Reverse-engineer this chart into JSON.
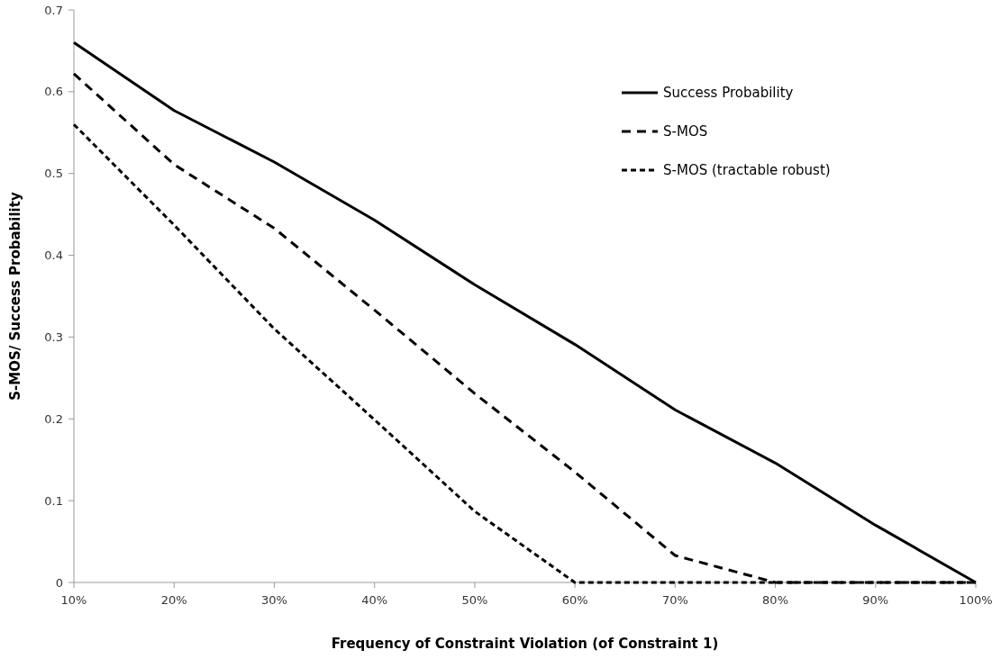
{
  "chart_data": {
    "type": "line",
    "xlabel": "Frequency of Constraint Violation (of Constraint 1)",
    "ylabel": "S-MOS/ Success Probability",
    "categories": [
      "10%",
      "20%",
      "30%",
      "40%",
      "50%",
      "60%",
      "70%",
      "80%",
      "90%",
      "100%"
    ],
    "ylim": [
      0,
      0.7
    ],
    "yticks": [
      0,
      0.1,
      0.2,
      0.3,
      0.4,
      0.5,
      0.6,
      0.7
    ],
    "legend": "top right",
    "grid": false,
    "series": [
      {
        "name": "Success Probability",
        "color": "#000000",
        "line_style": "solid",
        "values": [
          0.66,
          0.577,
          0.514,
          0.443,
          0.364,
          0.291,
          0.211,
          0.146,
          0.07,
          0
        ]
      },
      {
        "name": "S-MOS",
        "color": "#000000",
        "line_style": "dashed",
        "values": [
          0.622,
          0.511,
          0.433,
          0.333,
          0.231,
          0.135,
          0.033,
          0,
          0,
          0
        ]
      },
      {
        "name": "S-MOS (tractable robust)",
        "color": "#000000",
        "line_style": "dotted",
        "values": [
          0.56,
          0.437,
          0.31,
          0.199,
          0.087,
          0,
          0,
          0,
          0,
          0
        ]
      }
    ]
  }
}
